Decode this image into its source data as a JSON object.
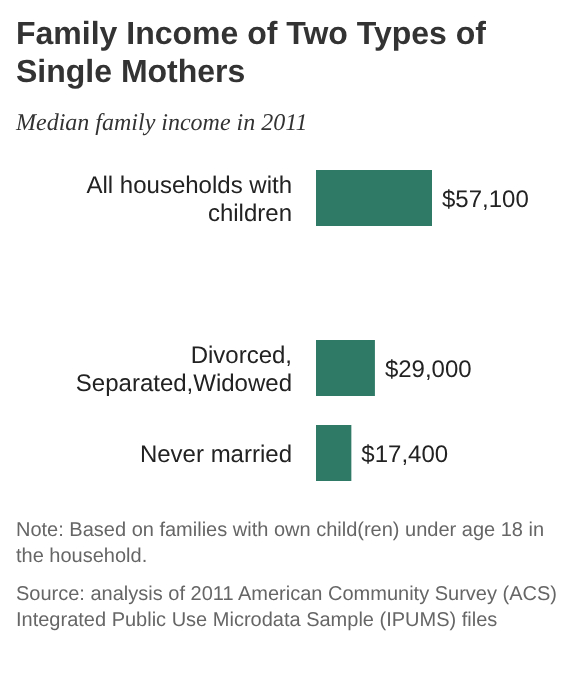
{
  "chart_data": {
    "type": "bar",
    "orientation": "horizontal",
    "title": "Family Income of Two Types of Single Mothers",
    "subtitle": "Median family income in 2011",
    "categories": [
      "All households with children",
      null,
      "Divorced, Separated,Widowed",
      "Never married"
    ],
    "values": [
      57100,
      null,
      29000,
      17400
    ],
    "value_labels": [
      "$57,100",
      null,
      "$29,000",
      "$17,400"
    ],
    "color": "#2e7a66",
    "annotations": [
      "Note: Based on families with own child(ren) under age 18 in the household.",
      "Source: analysis of 2011 American Community Survey (ACS) Integrated Public Use Microdata Sample (IPUMS) files"
    ]
  }
}
